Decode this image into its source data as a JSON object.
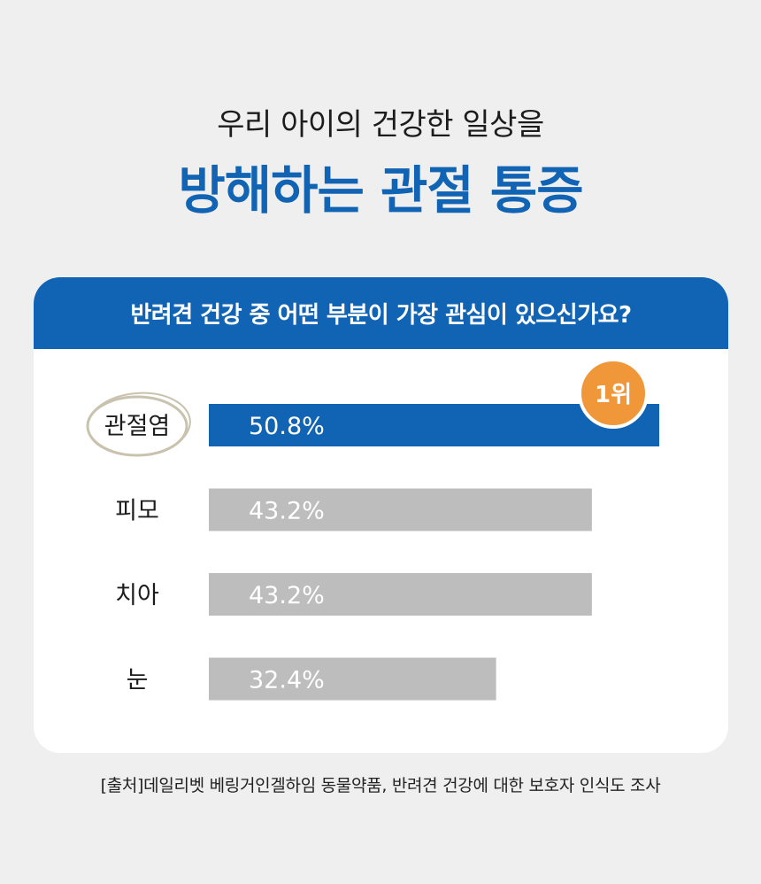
{
  "header": {
    "subtitle": "우리 아이의 건강한 일상을",
    "title": "방해하는 관절 통증"
  },
  "card": {
    "question": "반려견 건강 중 어떤 부분이 가장 관심이 있으신가요?"
  },
  "chart_data": {
    "type": "bar",
    "orientation": "horizontal",
    "categories": [
      "관절염",
      "피모",
      "치아",
      "눈"
    ],
    "values": [
      50.8,
      43.2,
      43.2,
      32.4
    ],
    "value_labels": [
      "50.8%",
      "43.2%",
      "43.2%",
      "32.4%"
    ],
    "unit": "%",
    "xlim": [
      0,
      50.8
    ],
    "grid": false,
    "highlight_index": 0,
    "badge": "1위",
    "colors": {
      "highlight": "#1164b4",
      "default": "#bdbdbd",
      "badge": "#f0973a",
      "circle": "#c9c2ae"
    }
  },
  "footer": {
    "source": "[출처]데일리벳 베링거인겔하임 동물약품, 반려견 건강에 대한 보호자 인식도 조사"
  }
}
